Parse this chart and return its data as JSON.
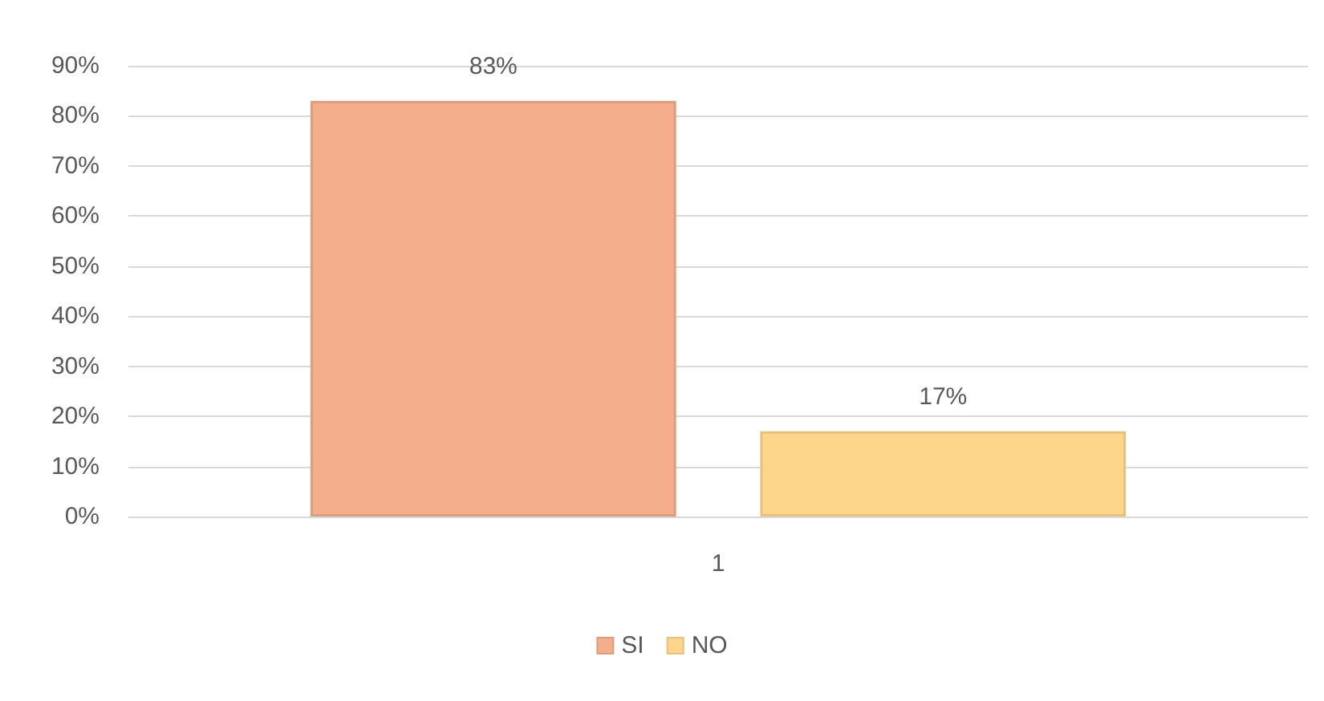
{
  "chart_data": {
    "type": "bar",
    "categories": [
      "1"
    ],
    "series": [
      {
        "name": "SI",
        "color": "#f4ae8b",
        "values": [
          83
        ],
        "value_labels": [
          "83%"
        ]
      },
      {
        "name": "NO",
        "color": "#fdd68c",
        "values": [
          17
        ],
        "value_labels": [
          "17%"
        ]
      }
    ],
    "ylim": [
      0,
      90
    ],
    "yticks": [
      {
        "value": 0,
        "label": "0%"
      },
      {
        "value": 10,
        "label": "10%"
      },
      {
        "value": 20,
        "label": "20%"
      },
      {
        "value": 30,
        "label": "30%"
      },
      {
        "value": 40,
        "label": "40%"
      },
      {
        "value": 50,
        "label": "50%"
      },
      {
        "value": 60,
        "label": "60%"
      },
      {
        "value": 70,
        "label": "70%"
      },
      {
        "value": 80,
        "label": "80%"
      },
      {
        "value": 90,
        "label": "90%"
      }
    ],
    "grid": "y",
    "legend": "bottom"
  }
}
